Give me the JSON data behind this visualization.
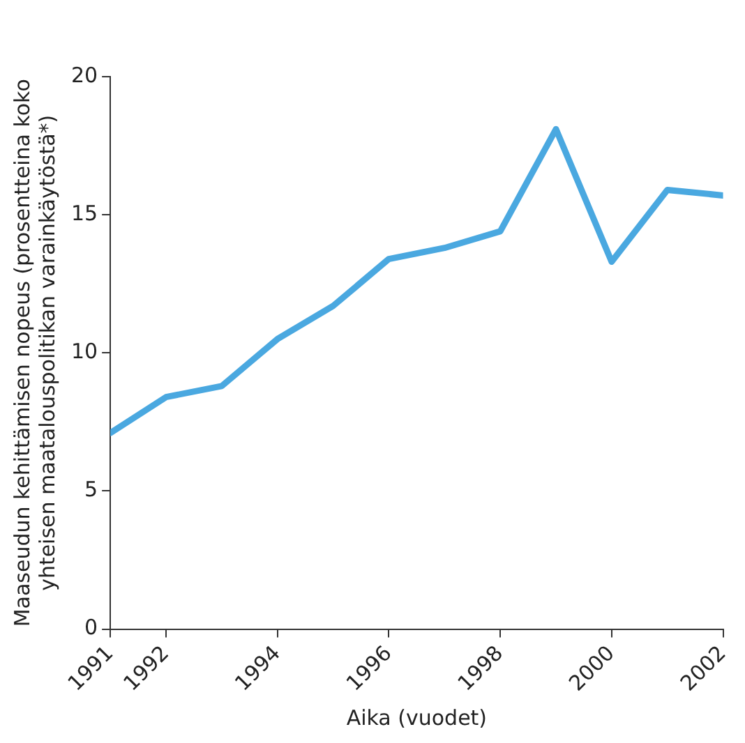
{
  "chart_data": {
    "type": "line",
    "xlabel": "Aika (vuodet)",
    "ylabel": "Maaseudun kehittämisen nopeus (prosentteina koko\nyhteisen maatalouspolitikan varainkäytöstä*)",
    "x": [
      1991,
      1992,
      1993,
      1994,
      1995,
      1996,
      1997,
      1998,
      1999,
      2000,
      2001,
      2002
    ],
    "series": [
      {
        "color": "#4aa8e0",
        "values": [
          7.1,
          8.4,
          8.8,
          10.5,
          11.7,
          13.4,
          13.8,
          14.4,
          18.1,
          13.3,
          15.9,
          15.7
        ]
      }
    ],
    "xlim": [
      1991,
      2002
    ],
    "xticks": [
      1991,
      1992,
      1994,
      1996,
      1998,
      2000,
      2002
    ],
    "ylim": [
      0,
      20
    ],
    "yticks": [
      0,
      5,
      10,
      15,
      20
    ],
    "grid": false,
    "legend": false,
    "marker": "none",
    "line_style": "solid"
  }
}
